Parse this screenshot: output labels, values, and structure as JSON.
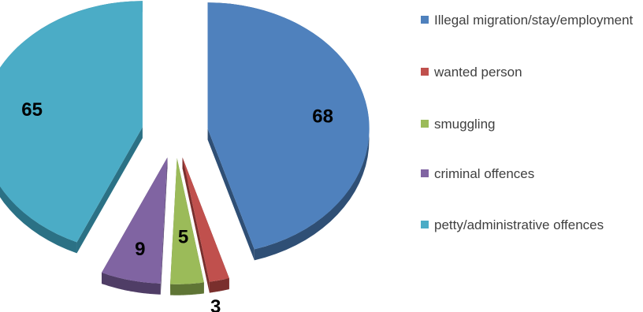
{
  "chart_data": {
    "type": "pie",
    "title": "",
    "categories": [
      "Illegal migration/stay/employment",
      "wanted person",
      "smuggling",
      "criminal offences",
      "petty/administrative offences"
    ],
    "values": [
      68,
      3,
      5,
      9,
      65
    ],
    "data_labels": [
      "68",
      "3",
      "5",
      "9",
      "65"
    ],
    "colors": [
      "#4f81bd",
      "#c0504d",
      "#9bbb59",
      "#8064a2",
      "#4bacc6"
    ],
    "side_colors": [
      "#2f4f75",
      "#7a2f2d",
      "#5f7535",
      "#4f3d66",
      "#2b7185"
    ],
    "style": "exploded-3d",
    "legend_position": "right"
  }
}
